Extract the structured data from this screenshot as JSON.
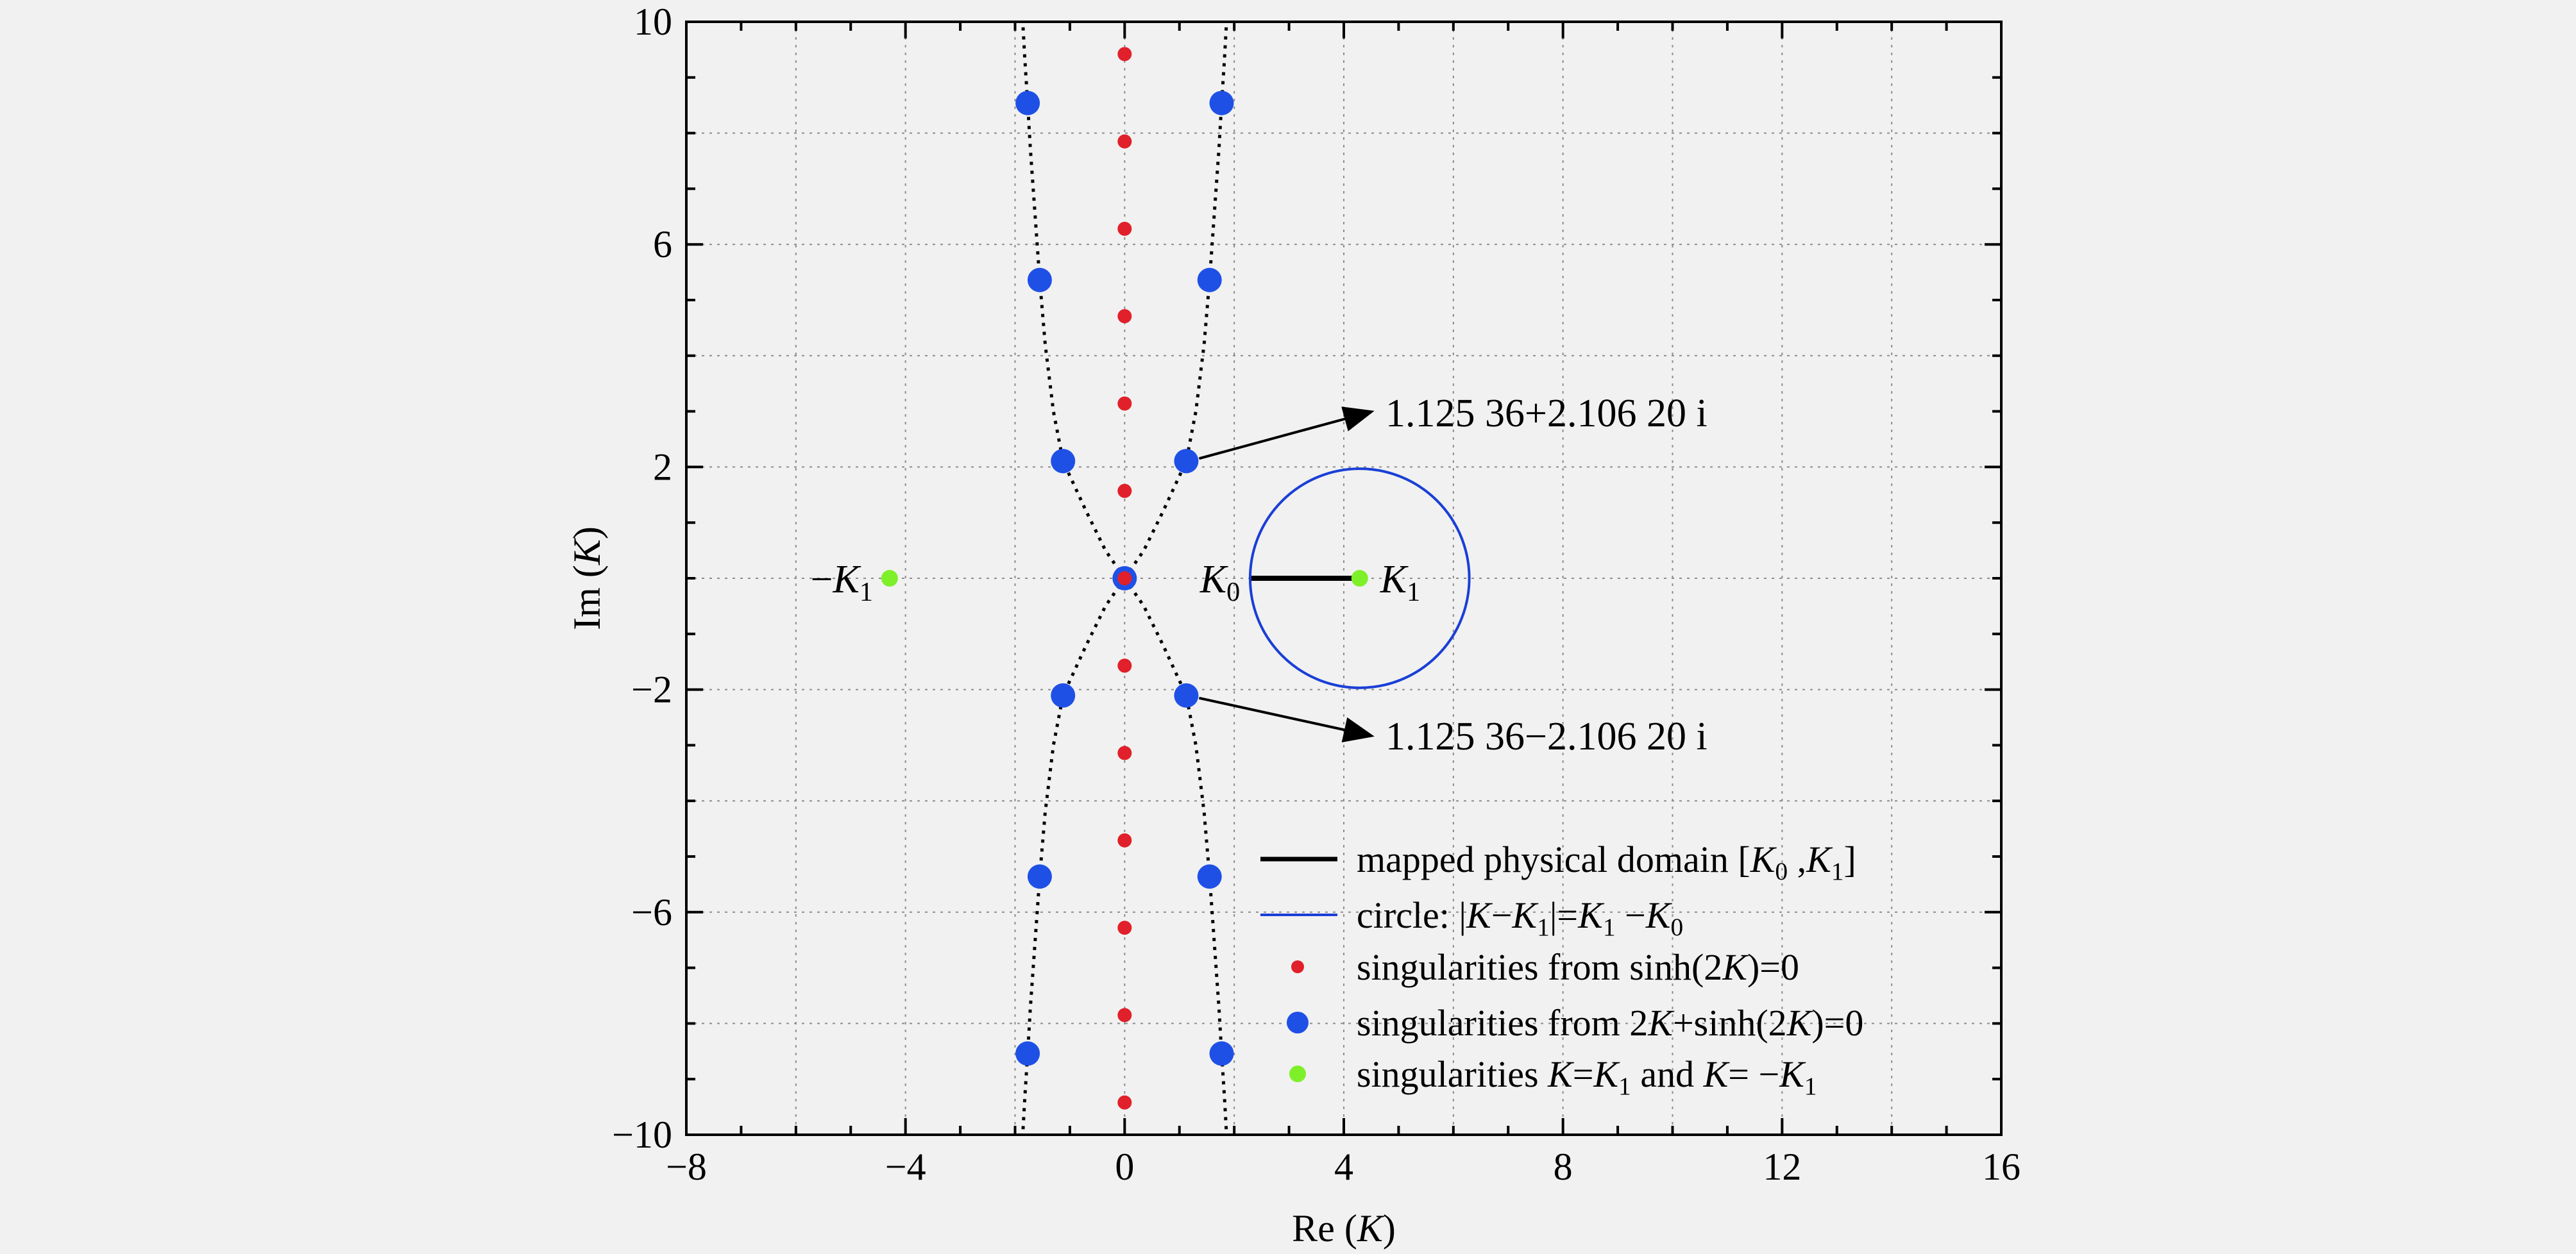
{
  "chart_data": {
    "type": "scatter",
    "xlabel": "Re (K)",
    "ylabel": "Im (K)",
    "xlim": [
      -8,
      16
    ],
    "ylim": [
      -10,
      10
    ],
    "xticks": [
      -8,
      -4,
      0,
      4,
      8,
      12,
      16
    ],
    "yticks": [
      -10,
      -6,
      -2,
      2,
      6,
      10
    ],
    "xtick_labels": [
      "−8",
      "−4",
      "0",
      "4",
      "8",
      "12",
      "16"
    ],
    "ytick_labels": [
      "−10",
      "−6",
      "−2",
      "2",
      "6",
      "10"
    ],
    "grid": true,
    "legend_position": "bottom-right",
    "series": [
      {
        "name": "mapped physical domain [K0 ,K1]",
        "kind": "segment",
        "color": "#000000",
        "x": [
          2.27,
          4.29
        ],
        "y": [
          0,
          0
        ]
      },
      {
        "name": "circle: |K−K1|=K1 −K0",
        "kind": "circle",
        "color": "#1a3fd6",
        "center": [
          4.29,
          0
        ],
        "radius": 2.0
      },
      {
        "name": "singularities from sinh(2K)=0",
        "kind": "points",
        "color": "#e0202a",
        "x": [
          0,
          0,
          0,
          0,
          0,
          0,
          0,
          0,
          0,
          0,
          0,
          0,
          0
        ],
        "y": [
          9.42,
          7.85,
          6.28,
          4.71,
          3.14,
          1.57,
          0,
          -1.57,
          -3.14,
          -4.71,
          -6.28,
          -7.85,
          -9.42
        ]
      },
      {
        "name": "singularities from 2K+sinh(2K)=0",
        "kind": "points",
        "color": "#1f50e6",
        "x": [
          1.125,
          -1.125,
          1.125,
          -1.125,
          1.55,
          -1.55,
          1.55,
          -1.55,
          1.77,
          -1.77,
          1.77,
          -1.77,
          0
        ],
        "y": [
          2.106,
          2.106,
          -2.106,
          -2.106,
          5.36,
          5.36,
          -5.36,
          -5.36,
          8.54,
          8.54,
          -8.54,
          -8.54,
          0
        ]
      },
      {
        "name": "singularities K=K1 and K= −K1",
        "kind": "points",
        "color": "#7ef02a",
        "x": [
          4.29,
          -4.29
        ],
        "y": [
          0,
          0
        ]
      }
    ],
    "curves": {
      "description": "dotted locus of roots of 2K+sinh(2K)=0",
      "color": "#000000",
      "x": [
        0,
        0.35,
        0.7,
        1.125,
        1.3,
        1.45,
        1.55,
        1.64,
        1.72,
        1.77,
        1.82,
        1.86
      ],
      "y": [
        0,
        0.5,
        1.2,
        2.106,
        3.0,
        4.2,
        5.36,
        6.6,
        7.7,
        8.54,
        9.3,
        10
      ]
    },
    "annotations": [
      {
        "text": "1.125 36+2.106 20 i",
        "points_to": [
          1.125,
          2.106
        ]
      },
      {
        "text": "1.125 36−2.106 20 i",
        "points_to": [
          1.125,
          -2.106
        ]
      }
    ],
    "point_labels": {
      "k0": "K0",
      "k1": "K1",
      "neg_k1": "−K1"
    }
  }
}
